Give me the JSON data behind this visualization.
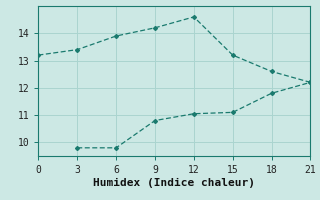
{
  "line1_x": [
    0,
    3,
    6,
    9,
    12,
    15,
    18,
    21
  ],
  "line1_y": [
    13.2,
    13.4,
    13.9,
    14.2,
    14.6,
    13.2,
    12.6,
    12.2
  ],
  "line2_x": [
    3,
    6,
    9,
    12,
    15,
    18,
    21
  ],
  "line2_y": [
    9.8,
    9.8,
    10.8,
    11.05,
    11.1,
    11.8,
    12.2
  ],
  "line_color": "#1a7a6e",
  "bg_color": "#cce8e4",
  "grid_color": "#aad4cf",
  "xlabel": "Humidex (Indice chaleur)",
  "xlim": [
    0,
    21
  ],
  "ylim": [
    9.5,
    15.0
  ],
  "xticks": [
    0,
    3,
    6,
    9,
    12,
    15,
    18,
    21
  ],
  "yticks": [
    10,
    11,
    12,
    13,
    14
  ],
  "xlabel_fontsize": 8,
  "tick_fontsize": 7
}
